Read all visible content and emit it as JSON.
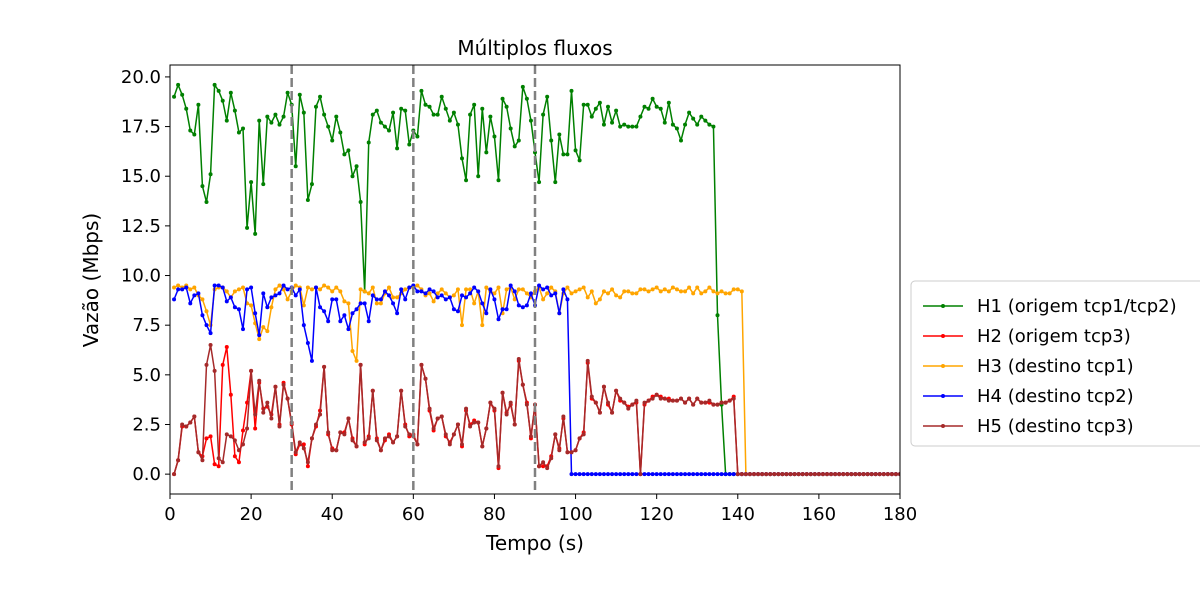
{
  "chart_data": {
    "type": "line",
    "title": "Múltiplos fluxos",
    "xlabel": "Tempo (s)",
    "ylabel": "Vazão (Mbps)",
    "xlim": [
      0,
      180
    ],
    "ylim": [
      -1.0,
      20.6
    ],
    "xticks": [
      0,
      20,
      40,
      60,
      80,
      100,
      120,
      140,
      160,
      180
    ],
    "xtick_labels": [
      "0",
      "20",
      "40",
      "60",
      "80",
      "100",
      "120",
      "140",
      "160",
      "180"
    ],
    "yticks": [
      0.0,
      2.5,
      5.0,
      7.5,
      10.0,
      12.5,
      15.0,
      17.5,
      20.0
    ],
    "ytick_labels": [
      "0.0",
      "2.5",
      "5.0",
      "7.5",
      "10.0",
      "12.5",
      "15.0",
      "17.5",
      "20.0"
    ],
    "grid": false,
    "legend_position": "outside-right",
    "vlines": [
      {
        "x": 30,
        "color": "#808080",
        "style": "dashed"
      },
      {
        "x": 60,
        "color": "#808080",
        "style": "dashed"
      },
      {
        "x": 90,
        "color": "#808080",
        "style": "dashed"
      }
    ],
    "series": [
      {
        "name": "H1 (origem tcp1/tcp2)",
        "color": "#008000",
        "x_start": 1,
        "x_step": 1,
        "values": [
          19.0,
          19.6,
          19.1,
          18.4,
          17.3,
          17.1,
          18.6,
          14.5,
          13.7,
          15.1,
          19.6,
          19.3,
          18.8,
          17.8,
          19.2,
          18.3,
          17.2,
          17.4,
          12.4,
          14.7,
          12.1,
          17.8,
          14.6,
          18.0,
          17.7,
          18.1,
          17.6,
          18.0,
          19.2,
          18.6,
          15.5,
          19.1,
          18.2,
          13.8,
          14.6,
          18.5,
          19.0,
          18.1,
          17.5,
          16.8,
          18.0,
          17.2,
          16.1,
          16.3,
          15.0,
          15.5,
          13.7,
          9.2,
          16.7,
          18.1,
          18.3,
          17.7,
          17.5,
          17.3,
          18.2,
          16.4,
          18.4,
          18.3,
          16.6,
          17.3,
          17.0,
          19.3,
          18.6,
          18.5,
          18.1,
          18.1,
          19.0,
          18.4,
          17.8,
          18.2,
          17.6,
          15.9,
          14.8,
          18.1,
          18.6,
          15.0,
          18.4,
          16.2,
          18.0,
          17.0,
          14.8,
          18.9,
          18.5,
          17.4,
          16.5,
          16.8,
          19.5,
          18.9,
          17.8,
          16.2,
          14.7,
          18.1,
          19.0,
          16.8,
          14.7,
          17.1,
          16.1,
          16.1,
          19.3,
          16.3,
          15.8,
          18.6,
          18.6,
          18.0,
          18.4,
          18.7,
          17.6,
          18.5,
          17.7,
          18.3,
          17.5,
          17.6,
          17.5,
          17.5,
          17.5,
          18.0,
          18.5,
          18.4,
          18.9,
          18.5,
          18.4,
          17.7,
          18.7,
          17.6,
          17.4,
          16.8,
          17.6,
          18.2,
          17.9,
          17.6,
          18.0,
          17.8,
          17.6,
          17.5,
          8.0,
          3.5,
          0,
          0,
          0,
          0,
          0,
          0,
          0,
          0,
          0,
          0,
          0,
          0,
          0,
          0,
          0,
          0,
          0,
          0,
          0,
          0,
          0,
          0,
          0,
          0,
          0,
          0,
          0,
          0,
          0,
          0,
          0,
          0,
          0,
          0,
          0,
          0,
          0,
          0,
          0,
          0,
          0,
          0,
          0,
          0,
          0,
          0,
          0,
          0,
          0,
          0,
          0,
          0,
          0,
          0,
          0,
          0,
          0,
          0,
          0,
          0,
          0,
          0,
          0,
          0,
          0,
          0,
          0,
          0,
          0,
          0,
          0,
          0,
          0,
          0,
          0,
          0,
          0,
          0,
          0,
          0,
          0,
          0,
          0,
          0,
          0,
          0,
          0,
          0,
          0,
          0,
          0,
          0,
          0,
          0,
          0
        ]
      },
      {
        "name": "H2 (origem tcp3)",
        "color": "#ff0000",
        "x_start": 1,
        "x_step": 1,
        "values": [
          0.0,
          0.7,
          2.4,
          2.4,
          2.6,
          2.9,
          1.1,
          0.9,
          1.8,
          1.9,
          0.5,
          0.4,
          5.5,
          6.4,
          4.0,
          0.9,
          0.6,
          2.2,
          3.6,
          5.2,
          2.3,
          4.6,
          3.3,
          3.4,
          3.0,
          4.4,
          2.5,
          4.6,
          3.8,
          2.5,
          1.0,
          1.5,
          1.5,
          0.4,
          1.8,
          2.4,
          3.2,
          5.4,
          2.0,
          1.3,
          1.2,
          2.1,
          2.1,
          2.8,
          1.8,
          1.4,
          5.5,
          1.5,
          1.9,
          4.2,
          1.8,
          1.2,
          1.7,
          2.0,
          1.6,
          1.9,
          4.2,
          2.5,
          1.9,
          2.0,
          1.5,
          5.5,
          4.8,
          3.2,
          2.2,
          2.8,
          2.9,
          1.9,
          1.6,
          2.0,
          2.5,
          1.4,
          3.2,
          2.5,
          2.7,
          2.6,
          1.4,
          2.3,
          3.6,
          3.2,
          0.3,
          4.1,
          3.1,
          3.5,
          2.5,
          5.7,
          4.5,
          3.6,
          1.8,
          3.5,
          0.4,
          0.4,
          0.4,
          0.9,
          2.0,
          1.3,
          2.8,
          1.1,
          1.1,
          1.2,
          1.8,
          2.1,
          5.6,
          3.8,
          3.6,
          3.1,
          4.4,
          3.5,
          3.1,
          4.2,
          3.7,
          3.6,
          3.4,
          3.5,
          3.6,
          0.0,
          3.5,
          3.7,
          3.9,
          4.0,
          3.9,
          3.8,
          3.8,
          3.7,
          3.7,
          3.8,
          3.6,
          3.8,
          3.5,
          3.8,
          3.6,
          3.6,
          3.6,
          3.5,
          3.5,
          3.6,
          3.6,
          3.7,
          3.9,
          0,
          0,
          0,
          0,
          0,
          0,
          0,
          0,
          0,
          0,
          0,
          0,
          0,
          0,
          0,
          0,
          0,
          0,
          0,
          0,
          0,
          0,
          0,
          0,
          0,
          0,
          0,
          0,
          0,
          0,
          0,
          0,
          0,
          0,
          0,
          0,
          0,
          0,
          0,
          0,
          0,
          0,
          0,
          0,
          0,
          0,
          0,
          0,
          0,
          0,
          0,
          0,
          0,
          0,
          0,
          0,
          0,
          0,
          0,
          0,
          0,
          0,
          0,
          0,
          0,
          0,
          0,
          0,
          0,
          0,
          0,
          0,
          0,
          0,
          0,
          0,
          0,
          0,
          0,
          0,
          0,
          0,
          0
        ]
      },
      {
        "name": "H3 (destino tcp1)",
        "color": "#ffa500",
        "x_start": 1,
        "x_step": 1,
        "values": [
          9.4,
          9.5,
          9.4,
          9.5,
          9.3,
          9.4,
          9.0,
          8.8,
          8.2,
          7.5,
          9.3,
          9.4,
          9.4,
          9.2,
          8.9,
          9.2,
          9.3,
          9.4,
          8.6,
          8.5,
          7.6,
          6.8,
          7.4,
          7.2,
          8.4,
          9.3,
          9.5,
          9.3,
          8.8,
          9.2,
          9.5,
          9.4,
          8.5,
          9.4,
          9.3,
          9.4,
          9.3,
          9.5,
          9.4,
          9.2,
          9.4,
          9.2,
          8.7,
          8.6,
          6.2,
          5.7,
          9.3,
          9.2,
          9.1,
          9.4,
          8.6,
          8.6,
          9.1,
          9.4,
          8.9,
          8.9,
          9.1,
          9.3,
          9.4,
          9.4,
          9.5,
          9.3,
          9.0,
          9.1,
          8.7,
          9.1,
          9.3,
          9.1,
          8.9,
          9.0,
          9.3,
          7.5,
          9.3,
          9.3,
          8.6,
          9.2,
          7.5,
          9.4,
          9.2,
          9.1,
          9.4,
          8.1,
          9.3,
          9.4,
          8.8,
          9.3,
          9.3,
          9.1,
          8.9,
          9.2,
          9.4,
          8.8,
          9.1,
          9.4,
          9.2,
          8.1,
          9.1,
          9.4,
          9.1,
          9.2,
          9.3,
          9.4,
          8.9,
          9.2,
          8.6,
          8.8,
          9.2,
          9.1,
          9.3,
          9.0,
          8.9,
          9.2,
          9.2,
          9.1,
          9.1,
          9.3,
          9.3,
          9.2,
          9.3,
          9.4,
          9.2,
          9.3,
          9.2,
          9.4,
          9.3,
          9.2,
          9.2,
          9.4,
          9.1,
          9.4,
          9.1,
          9.2,
          9.4,
          9.2,
          9.1,
          9.2,
          9.1,
          9.1,
          9.3,
          9.3,
          9.2,
          0,
          0,
          0,
          0,
          0,
          0,
          0,
          0,
          0,
          0,
          0,
          0,
          0,
          0,
          0,
          0,
          0,
          0,
          0,
          0,
          0,
          0,
          0,
          0,
          0,
          0,
          0,
          0,
          0,
          0,
          0,
          0,
          0,
          0,
          0,
          0,
          0,
          0,
          0,
          0,
          0,
          0,
          0,
          0,
          0,
          0,
          0,
          0,
          0,
          0,
          0,
          0,
          0,
          0,
          0,
          0,
          0,
          0,
          0,
          0,
          0,
          0,
          0,
          0,
          0,
          0,
          0,
          0,
          0,
          0,
          0,
          0,
          0,
          0,
          0,
          0,
          0,
          0,
          0,
          0,
          0,
          0
        ]
      },
      {
        "name": "H4 (destino tcp2)",
        "color": "#0000ff",
        "x_start": 1,
        "x_step": 1,
        "values": [
          8.8,
          9.3,
          9.3,
          9.4,
          8.6,
          9.0,
          9.1,
          8.0,
          7.5,
          7.1,
          9.5,
          9.5,
          9.4,
          8.7,
          8.9,
          8.4,
          8.3,
          7.3,
          9.3,
          9.4,
          8.1,
          7.0,
          9.1,
          8.4,
          8.9,
          9.0,
          9.1,
          9.5,
          9.3,
          9.4,
          9.0,
          9.3,
          7.5,
          6.6,
          5.7,
          9.4,
          8.4,
          8.2,
          7.7,
          8.8,
          8.8,
          7.7,
          8.0,
          7.3,
          8.1,
          8.3,
          8.6,
          8.6,
          7.7,
          9.0,
          8.8,
          8.8,
          9.2,
          9.0,
          8.6,
          8.1,
          9.3,
          8.8,
          9.4,
          9.5,
          9.2,
          9.2,
          9.1,
          9.3,
          9.2,
          8.9,
          9.0,
          8.8,
          8.9,
          8.3,
          8.2,
          9.0,
          8.9,
          9.1,
          9.4,
          9.2,
          8.6,
          8.1,
          9.3,
          8.8,
          7.8,
          8.3,
          8.3,
          9.5,
          9.2,
          8.5,
          8.4,
          8.5,
          9.1,
          8.5,
          9.5,
          9.3,
          9.4,
          9.0,
          9.1,
          8.1,
          9.3,
          8.8,
          0.0,
          0.0,
          0.0,
          0,
          0,
          0,
          0,
          0,
          0,
          0,
          0,
          0,
          0,
          0,
          0,
          0,
          0,
          0,
          0,
          0,
          0,
          0,
          0,
          0,
          0,
          0,
          0,
          0,
          0,
          0,
          0,
          0,
          0,
          0,
          0,
          0,
          0,
          0,
          0,
          0,
          0,
          0,
          0,
          0,
          0,
          0,
          0,
          0,
          0,
          0,
          0,
          0,
          0,
          0,
          0,
          0,
          0,
          0,
          0,
          0,
          0,
          0,
          0,
          0,
          0,
          0,
          0,
          0,
          0,
          0,
          0,
          0,
          0,
          0,
          0,
          0,
          0,
          0,
          0,
          0,
          0,
          0,
          0,
          0,
          0,
          0,
          0,
          0,
          0,
          0,
          0,
          0,
          0,
          0,
          0,
          0,
          0,
          0,
          0
        ]
      },
      {
        "name": "H5 (destino tcp3)",
        "color": "#a52a2a",
        "x_start": 1,
        "x_step": 1,
        "values": [
          0.0,
          0.7,
          2.5,
          2.4,
          2.6,
          2.9,
          1.1,
          0.7,
          5.5,
          6.5,
          5.2,
          0.8,
          0.6,
          2.0,
          1.9,
          1.7,
          1.2,
          1.5,
          2.3,
          5.2,
          3.0,
          4.7,
          3.1,
          3.6,
          2.8,
          4.4,
          2.4,
          4.5,
          3.8,
          2.6,
          1.1,
          1.6,
          1.3,
          0.6,
          1.8,
          2.5,
          3.0,
          5.4,
          2.1,
          1.2,
          1.2,
          2.1,
          2.0,
          2.8,
          1.7,
          1.4,
          5.5,
          1.6,
          1.8,
          4.2,
          1.7,
          1.2,
          1.8,
          1.9,
          1.6,
          1.9,
          4.2,
          2.4,
          2.0,
          1.9,
          1.5,
          5.5,
          4.8,
          3.3,
          2.3,
          2.8,
          2.9,
          2.0,
          1.5,
          2.0,
          2.5,
          1.5,
          3.3,
          2.4,
          2.6,
          2.6,
          1.4,
          2.3,
          3.6,
          3.3,
          0.4,
          4.1,
          3.0,
          3.6,
          2.5,
          5.8,
          4.5,
          3.5,
          1.9,
          3.5,
          0.4,
          0.6,
          0.3,
          0.8,
          2.0,
          1.2,
          2.9,
          1.1,
          1.1,
          1.2,
          1.8,
          2.0,
          5.7,
          3.9,
          3.6,
          3.1,
          4.4,
          3.6,
          3.1,
          4.2,
          3.8,
          3.6,
          3.3,
          3.5,
          3.7,
          0.0,
          3.6,
          3.7,
          3.8,
          4.0,
          3.8,
          3.8,
          3.7,
          3.7,
          3.7,
          3.8,
          3.6,
          3.8,
          3.5,
          3.8,
          3.6,
          3.6,
          3.7,
          3.5,
          3.5,
          3.6,
          3.6,
          3.7,
          3.8,
          0,
          0,
          0,
          0,
          0,
          0,
          0,
          0,
          0,
          0,
          0,
          0,
          0,
          0,
          0,
          0,
          0,
          0,
          0,
          0,
          0,
          0,
          0,
          0,
          0,
          0,
          0,
          0,
          0,
          0,
          0,
          0,
          0,
          0,
          0,
          0,
          0,
          0,
          0,
          0,
          0,
          0,
          0,
          0,
          0,
          0,
          0,
          0,
          0,
          0,
          0,
          0,
          0,
          0,
          0,
          0,
          0,
          0,
          0,
          0,
          0,
          0,
          0,
          0,
          0,
          0,
          0,
          0,
          0,
          0,
          0,
          0,
          0,
          0,
          0,
          0,
          0,
          0,
          0,
          0,
          0,
          0
        ]
      }
    ]
  }
}
